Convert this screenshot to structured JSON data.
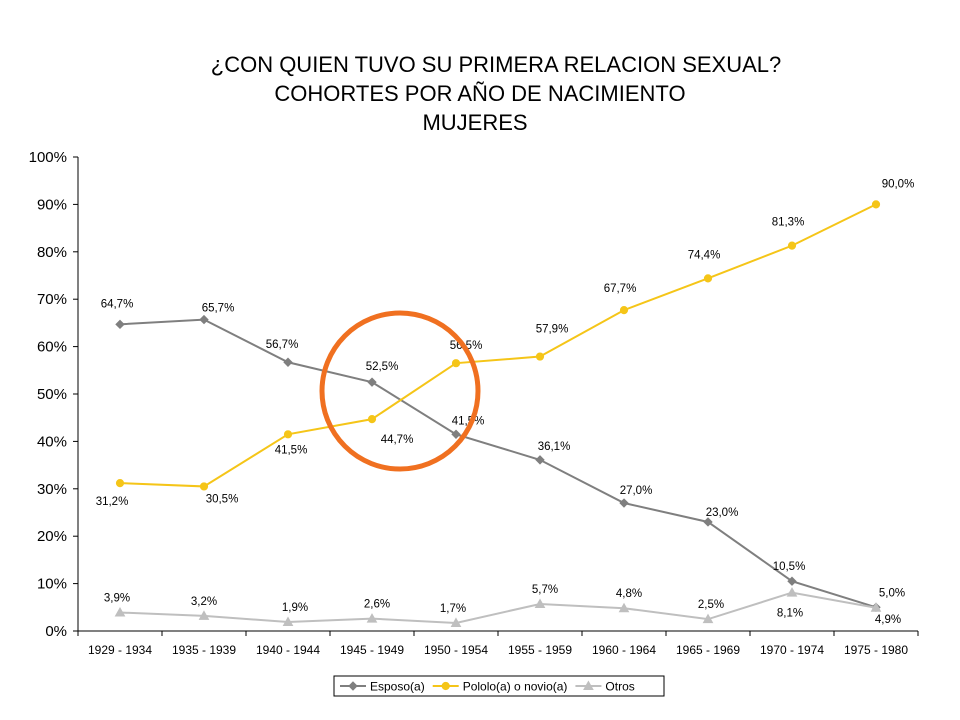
{
  "title": {
    "line1": "¿CON QUIEN TUVO SU PRIMERA RELACION SEXUAL?",
    "line2": "COHORTES POR AÑO DE NACIMIENTO",
    "line3": "MUJERES"
  },
  "chart_data": {
    "type": "line",
    "categories": [
      "1929 - 1934",
      "1935 - 1939",
      "1940 - 1944",
      "1945 - 1949",
      "1950 - 1954",
      "1955 - 1959",
      "1960 - 1964",
      "1965 - 1969",
      "1970 - 1974",
      "1975 - 1980"
    ],
    "ylim": [
      0,
      100
    ],
    "yticks": [
      "0%",
      "10%",
      "20%",
      "30%",
      "40%",
      "50%",
      "60%",
      "70%",
      "80%",
      "90%",
      "100%"
    ],
    "grid": false,
    "legend_position": "bottom",
    "series": [
      {
        "name": "Esposo(a)",
        "color": "#7f7f7f",
        "marker": "diamond",
        "values": [
          64.7,
          65.7,
          56.7,
          52.5,
          41.5,
          36.1,
          27.0,
          23.0,
          10.5,
          5.0
        ],
        "labels": [
          "64,7%",
          "65,7%",
          "56,7%",
          "52,5%",
          "41,5%",
          "36,1%",
          "27,0%",
          "23,0%",
          "10,5%",
          "5,0%"
        ]
      },
      {
        "name": "Pololo(a) o novio(a)",
        "color": "#f5c518",
        "marker": "circle",
        "values": [
          31.2,
          30.5,
          41.5,
          44.7,
          56.5,
          57.9,
          67.7,
          74.4,
          81.3,
          90.0
        ],
        "labels": [
          "31,2%",
          "30,5%",
          "41,5%",
          "44,7%",
          "56,5%",
          "57,9%",
          "67,7%",
          "74,4%",
          "81,3%",
          "90,0%"
        ]
      },
      {
        "name": "Otros",
        "color": "#bfbfbf",
        "marker": "triangle",
        "values": [
          3.9,
          3.2,
          1.9,
          2.6,
          1.7,
          5.7,
          4.8,
          2.5,
          8.1,
          4.9
        ],
        "labels": [
          "3,9%",
          "3,2%",
          "1,9%",
          "2,6%",
          "1,7%",
          "5,7%",
          "4,8%",
          "2,5%",
          "8,1%",
          "4,9%"
        ]
      }
    ],
    "annotation": {
      "shape": "circle",
      "color": "#f07020"
    }
  }
}
